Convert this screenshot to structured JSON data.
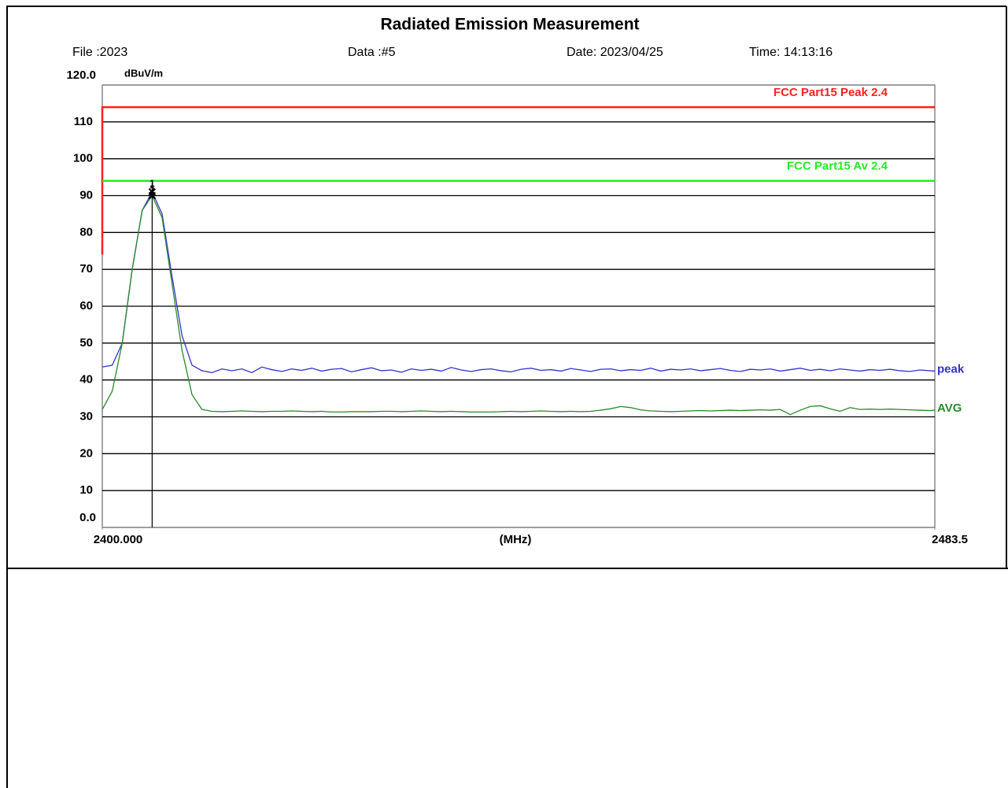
{
  "chart_data": {
    "type": "line",
    "title": "Radiated Emission Measurement",
    "info": [
      "File :2023",
      "Data :#5",
      "Date: 2023/04/25",
      "Time: 14:13:16"
    ],
    "y_label": "dBuV/m",
    "x_label": "(MHz)",
    "xlim": [
      2400,
      2483.5
    ],
    "xticks": [
      {
        "value": 2400,
        "label": "2400.000"
      },
      2483.5
    ],
    "ylim": [
      0,
      120
    ],
    "yticks": [
      {
        "value": 0,
        "label": "0.0"
      },
      10,
      20,
      30,
      40,
      50,
      60,
      70,
      80,
      90,
      100,
      110,
      {
        "value": 120,
        "label": "120.0"
      }
    ],
    "grid": true,
    "series": [
      {
        "name": "FCC Part15 Peak 2.4",
        "color": "#ff2020",
        "x": [
          2400,
          2400,
          2483.5
        ],
        "values": [
          74,
          114,
          114
        ]
      },
      {
        "name": "FCC Part15 Av 2.4",
        "color": "#22ee22",
        "x": [
          2400,
          2483.5
        ],
        "values": [
          94,
          94
        ]
      },
      {
        "name": "peak",
        "color": "#3333cc",
        "x": [
          2400,
          2401,
          2402,
          2403,
          2404,
          2405,
          2406,
          2407,
          2408,
          2409,
          2410,
          2411,
          2412,
          2413,
          2414,
          2415,
          2416,
          2417,
          2418,
          2419,
          2420,
          2421,
          2422,
          2423,
          2424,
          2425,
          2426,
          2427,
          2428,
          2429,
          2430,
          2431,
          2432,
          2433,
          2434,
          2435,
          2436,
          2437,
          2438,
          2439,
          2440,
          2441,
          2442,
          2443,
          2444,
          2445,
          2446,
          2447,
          2448,
          2449,
          2450,
          2451,
          2452,
          2453,
          2454,
          2455,
          2456,
          2457,
          2458,
          2459,
          2460,
          2461,
          2462,
          2463,
          2464,
          2465,
          2466,
          2467,
          2468,
          2469,
          2470,
          2471,
          2472,
          2473,
          2474,
          2475,
          2476,
          2477,
          2478,
          2479,
          2480,
          2481,
          2482,
          2483,
          2483.5
        ],
        "values": [
          43.5,
          44,
          50,
          70,
          86,
          91,
          85,
          68,
          52,
          44,
          42.5,
          42,
          43,
          42.5,
          43,
          42,
          43.5,
          42.8,
          42.3,
          43,
          42.6,
          43.2,
          42.4,
          42.9,
          43.1,
          42.2,
          42.8,
          43.3,
          42.5,
          42.7,
          42.1,
          43,
          42.6,
          42.9,
          42.4,
          43.4,
          42.7,
          42.3,
          42.8,
          43,
          42.5,
          42.2,
          42.9,
          43.2,
          42.6,
          42.8,
          42.4,
          43.1,
          42.7,
          42.3,
          42.9,
          43,
          42.5,
          42.8,
          42.6,
          43.2,
          42.4,
          42.9,
          42.7,
          43,
          42.5,
          42.8,
          43.1,
          42.6,
          42.3,
          42.9,
          42.7,
          43,
          42.4,
          42.8,
          43.2,
          42.6,
          42.9,
          42.5,
          43,
          42.7,
          42.4,
          42.8,
          42.6,
          42.9,
          42.5,
          42.3,
          42.7,
          42.5,
          42.4
        ]
      },
      {
        "name": "AVG",
        "color": "#2a8a2a",
        "x": [
          2400,
          2401,
          2402,
          2403,
          2404,
          2405,
          2406,
          2407,
          2408,
          2409,
          2410,
          2411,
          2412,
          2413,
          2414,
          2415,
          2416,
          2417,
          2418,
          2419,
          2420,
          2421,
          2422,
          2423,
          2424,
          2425,
          2426,
          2427,
          2428,
          2429,
          2430,
          2431,
          2432,
          2433,
          2434,
          2435,
          2436,
          2437,
          2438,
          2439,
          2440,
          2441,
          2442,
          2443,
          2444,
          2445,
          2446,
          2447,
          2448,
          2449,
          2450,
          2451,
          2452,
          2453,
          2454,
          2455,
          2456,
          2457,
          2458,
          2459,
          2460,
          2461,
          2462,
          2463,
          2464,
          2465,
          2466,
          2467,
          2468,
          2469,
          2470,
          2471,
          2472,
          2473,
          2474,
          2475,
          2476,
          2477,
          2478,
          2479,
          2480,
          2481,
          2482,
          2483,
          2483.5
        ],
        "values": [
          32,
          37,
          50,
          70,
          86,
          90,
          84,
          66,
          48,
          36,
          32,
          31.5,
          31.4,
          31.5,
          31.6,
          31.5,
          31.4,
          31.5,
          31.5,
          31.6,
          31.5,
          31.4,
          31.5,
          31.3,
          31.3,
          31.4,
          31.4,
          31.4,
          31.5,
          31.5,
          31.4,
          31.5,
          31.6,
          31.5,
          31.4,
          31.5,
          31.4,
          31.3,
          31.3,
          31.3,
          31.4,
          31.5,
          31.4,
          31.5,
          31.6,
          31.5,
          31.4,
          31.5,
          31.4,
          31.5,
          31.8,
          32.2,
          32.8,
          32.5,
          31.9,
          31.6,
          31.5,
          31.4,
          31.5,
          31.6,
          31.7,
          31.6,
          31.7,
          31.8,
          31.7,
          31.8,
          31.9,
          31.8,
          32.0,
          30.6,
          31.8,
          32.8,
          33.0,
          32.2,
          31.5,
          32.5,
          32.0,
          32.1,
          32.0,
          32.1,
          32.0,
          31.9,
          31.8,
          31.7,
          31.8
        ]
      }
    ],
    "markers": [
      {
        "label": "1",
        "x": 2405,
        "value": 91
      },
      {
        "label": "2",
        "x": 2405,
        "value": 90
      }
    ]
  }
}
